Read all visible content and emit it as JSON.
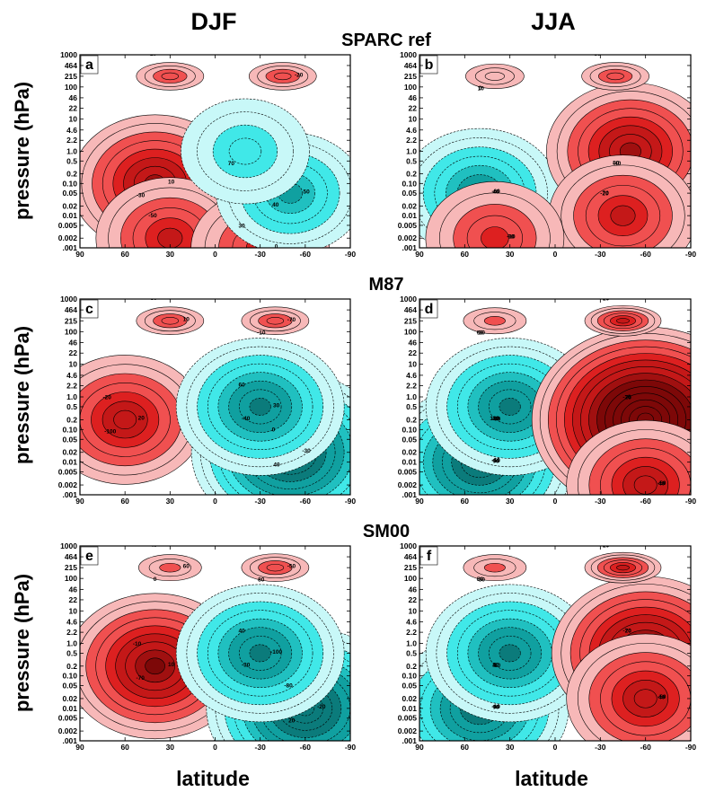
{
  "column_titles": {
    "left": "DJF",
    "right": "JJA"
  },
  "ylabel": "pressure (hPa)",
  "xlabel": "latitude",
  "pressure_ticks": [
    ".001",
    "0.002",
    "0.005",
    "0.01",
    "0.02",
    "0.05",
    "0.10",
    "0.2",
    "0.5",
    "1.0",
    "2.2",
    "4.6",
    "10",
    "22",
    "46",
    "100",
    "215",
    "464",
    "1000"
  ],
  "latitude_ticks": [
    "90",
    "60",
    "30",
    "0",
    "-30",
    "-60",
    "-90"
  ],
  "colors": {
    "red_levels": [
      "#f7b8b8",
      "#f05050",
      "#dd2020",
      "#c41818",
      "#a01010",
      "#7d0808"
    ],
    "cyan_levels": [
      "#c8f8f8",
      "#40e8e8",
      "#20c0c0",
      "#10a0a0",
      "#0b7b7b"
    ],
    "contour": "#000000"
  },
  "chart_data": [
    {
      "type": "heatmap",
      "row_title": "SPARC ref",
      "panel": "a",
      "season": "DJF",
      "xlim": [
        90,
        -90
      ],
      "ylim": [
        1000,
        0.001
      ],
      "yscale": "log",
      "features": [
        {
          "lat": 40,
          "p": 0.1,
          "value": 70
        },
        {
          "lat": 30,
          "p": 0.002,
          "value": 50
        },
        {
          "lat": -30,
          "p": 0.001,
          "value": 40
        },
        {
          "lat": -50,
          "p": 0.05,
          "value": -50
        },
        {
          "lat": -20,
          "p": 1.0,
          "value": -30
        },
        {
          "lat": 30,
          "p": 215,
          "value": 30
        },
        {
          "lat": -45,
          "p": 215,
          "value": 30
        }
      ],
      "contour_labels": [
        "10",
        "20",
        "30",
        "50",
        "70",
        "-10",
        "-20",
        "-30",
        "-50",
        "0",
        "40"
      ]
    },
    {
      "type": "heatmap",
      "row_title": "SPARC ref",
      "panel": "b",
      "season": "JJA",
      "xlim": [
        90,
        -90
      ],
      "ylim": [
        1000,
        0.001
      ],
      "yscale": "log",
      "features": [
        {
          "lat": 50,
          "p": 0.05,
          "value": -60
        },
        {
          "lat": -50,
          "p": 1.0,
          "value": 70
        },
        {
          "lat": -45,
          "p": 0.01,
          "value": 50
        },
        {
          "lat": 40,
          "p": 0.002,
          "value": 40
        },
        {
          "lat": 40,
          "p": 215,
          "value": 10
        },
        {
          "lat": -40,
          "p": 215,
          "value": 30
        }
      ],
      "contour_labels": [
        "-60",
        "-40",
        "-20",
        "-10",
        "10",
        "30",
        "40",
        "50",
        "70",
        "90",
        "0"
      ]
    },
    {
      "type": "heatmap",
      "row_title": "M87",
      "panel": "c",
      "season": "DJF",
      "xlim": [
        90,
        -90
      ],
      "ylim": [
        1000,
        0.001
      ],
      "yscale": "log",
      "features": [
        {
          "lat": 60,
          "p": 0.2,
          "value": 60
        },
        {
          "lat": -50,
          "p": 0.02,
          "value": -100
        },
        {
          "lat": -30,
          "p": 0.5,
          "value": -70
        },
        {
          "lat": 30,
          "p": 215,
          "value": 30
        },
        {
          "lat": -40,
          "p": 215,
          "value": 30
        }
      ],
      "contour_labels": [
        "20",
        "40",
        "60",
        "10",
        "-10",
        "-20",
        "-30",
        "-40",
        "-50",
        "-70",
        "-100",
        "0",
        "30"
      ]
    },
    {
      "type": "heatmap",
      "row_title": "M87",
      "panel": "d",
      "season": "JJA",
      "xlim": [
        90,
        -90
      ],
      "ylim": [
        1000,
        0.001
      ],
      "yscale": "log",
      "features": [
        {
          "lat": 50,
          "p": 0.01,
          "value": -90
        },
        {
          "lat": 30,
          "p": 0.5,
          "value": -70
        },
        {
          "lat": -60,
          "p": 0.2,
          "value": 130
        },
        {
          "lat": -60,
          "p": 0.002,
          "value": 60
        },
        {
          "lat": 40,
          "p": 215,
          "value": 20
        },
        {
          "lat": -45,
          "p": 215,
          "value": 50
        }
      ],
      "contour_labels": [
        "-60",
        "-90",
        "-70",
        "-50",
        "-30",
        "-20",
        "-10",
        "10",
        "20",
        "40",
        "50",
        "70",
        "90",
        "130",
        "0"
      ]
    },
    {
      "type": "heatmap",
      "row_title": "SM00",
      "panel": "e",
      "season": "DJF",
      "xlim": [
        90,
        -90
      ],
      "ylim": [
        1000,
        0.001
      ],
      "yscale": "log",
      "features": [
        {
          "lat": 40,
          "p": 0.2,
          "value": 80
        },
        {
          "lat": -60,
          "p": 0.01,
          "value": -100
        },
        {
          "lat": -30,
          "p": 0.5,
          "value": -70
        },
        {
          "lat": 30,
          "p": 215,
          "value": 20
        },
        {
          "lat": -40,
          "p": 215,
          "value": 30
        }
      ],
      "contour_labels": [
        "10",
        "20",
        "40",
        "60",
        "80",
        "-10",
        "-20",
        "-30",
        "-40",
        "-50",
        "-70",
        "-80",
        "-100",
        "0"
      ]
    },
    {
      "type": "heatmap",
      "row_title": "SM00",
      "panel": "f",
      "season": "JJA",
      "xlim": [
        90,
        -90
      ],
      "ylim": [
        1000,
        0.001
      ],
      "yscale": "log",
      "features": [
        {
          "lat": 50,
          "p": 0.01,
          "value": -80
        },
        {
          "lat": 30,
          "p": 0.5,
          "value": -70
        },
        {
          "lat": -60,
          "p": 0.5,
          "value": 90
        },
        {
          "lat": -60,
          "p": 0.02,
          "value": 60
        },
        {
          "lat": 40,
          "p": 215,
          "value": 20
        },
        {
          "lat": -45,
          "p": 215,
          "value": 50
        }
      ],
      "contour_labels": [
        "-60",
        "-80",
        "-70",
        "-50",
        "-30",
        "-20",
        "-10",
        "10",
        "20",
        "40",
        "50",
        "70",
        "90",
        "0"
      ]
    }
  ]
}
